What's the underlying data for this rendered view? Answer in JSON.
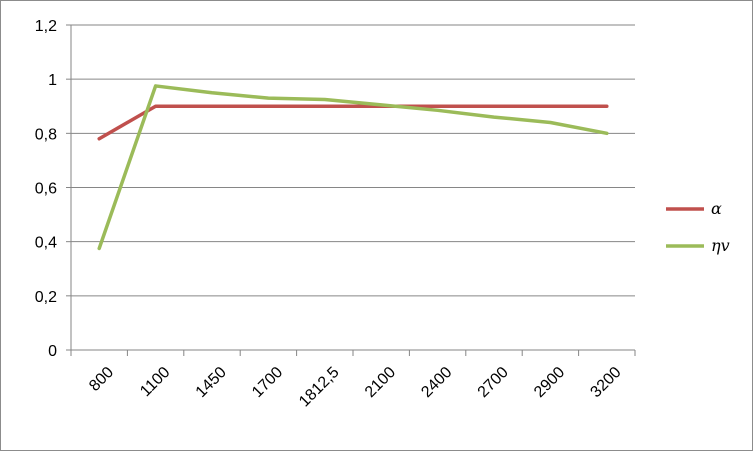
{
  "chart_data": {
    "type": "line",
    "categories": [
      "800",
      "1100",
      "1450",
      "1700",
      "1812,5",
      "2100",
      "2400",
      "2700",
      "2900",
      "3200"
    ],
    "y_ticks": [
      "0",
      "0,2",
      "0,4",
      "0,6",
      "0,8",
      "1",
      "1,2"
    ],
    "ylim": [
      0,
      1.2
    ],
    "grid": true,
    "legend_position": "right",
    "series": [
      {
        "name": "α",
        "color": "#c0504d",
        "values": [
          0.78,
          0.9,
          0.9,
          0.9,
          0.9,
          0.9,
          0.9,
          0.9,
          0.9,
          0.9
        ]
      },
      {
        "name": "ηv",
        "color": "#9bbb59",
        "values": [
          0.375,
          0.975,
          0.95,
          0.93,
          0.925,
          0.905,
          0.885,
          0.86,
          0.84,
          0.8
        ]
      }
    ]
  }
}
